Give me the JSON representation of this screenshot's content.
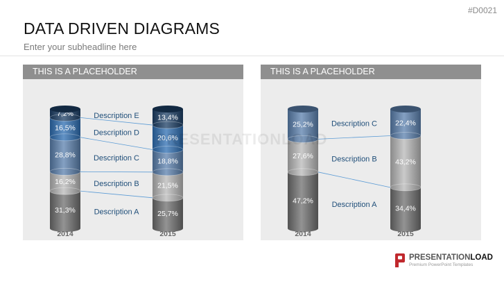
{
  "header": {
    "slide_id": "#D0021",
    "title": "DATA DRIVEN DIAGRAMS",
    "subtitle": "Enter your subheadline here"
  },
  "colors": {
    "panel_bg": "#ececec",
    "panel_header": "#8f8f8f",
    "grey_dark": "#6f6f6f",
    "grey_light": "#b8b8b8",
    "blue_mid": "#5b80ad",
    "blue_bright": "#2e6eb2",
    "blue_dark": "#1c3f66",
    "label_text": "#1f4e79",
    "connector": "#5b9bd5",
    "brand_red": "#c0282d"
  },
  "watermark": "PRESENTATIONLOAD",
  "logo": {
    "name_part1": "PRESENTATION",
    "name_part2": "LOAD",
    "tagline": "Premium PowerPoint Templates"
  },
  "chart_data": [
    {
      "type": "stacked-bar",
      "header": "THIS IS A PLACEHOLDER",
      "categories": [
        "2014",
        "2015"
      ],
      "series": [
        {
          "name": "Description A",
          "color": "#6f6f6f",
          "values": [
            31.3,
            25.7
          ],
          "labels": [
            "31,3%",
            "25,7%"
          ]
        },
        {
          "name": "Description B",
          "color": "#b8b8b8",
          "values": [
            16.2,
            21.5
          ],
          "labels": [
            "16,2%",
            "21,5%"
          ]
        },
        {
          "name": "Description C",
          "color": "#5b80ad",
          "values": [
            28.8,
            18.8
          ],
          "labels": [
            "28,8%",
            "18,8%"
          ]
        },
        {
          "name": "Description D",
          "color": "#2e6eb2",
          "values": [
            16.5,
            20.6
          ],
          "labels": [
            "16,5%",
            "20,6%"
          ]
        },
        {
          "name": "Description E",
          "color": "#1c3f66",
          "values": [
            7.2,
            13.4
          ],
          "labels": [
            "7,2%",
            "13,4%"
          ]
        }
      ]
    },
    {
      "type": "stacked-bar",
      "header": "THIS IS A PLACEHOLDER",
      "categories": [
        "2014",
        "2015"
      ],
      "series": [
        {
          "name": "Description A",
          "color": "#6f6f6f",
          "values": [
            47.2,
            34.4
          ],
          "labels": [
            "47,2%",
            "34,4%"
          ]
        },
        {
          "name": "Description B",
          "color": "#b8b8b8",
          "values": [
            27.6,
            43.2
          ],
          "labels": [
            "27,6%",
            "43,2%"
          ]
        },
        {
          "name": "Description C",
          "color": "#5b80ad",
          "values": [
            25.2,
            22.4
          ],
          "labels": [
            "25,2%",
            "22,4%"
          ]
        }
      ]
    }
  ]
}
